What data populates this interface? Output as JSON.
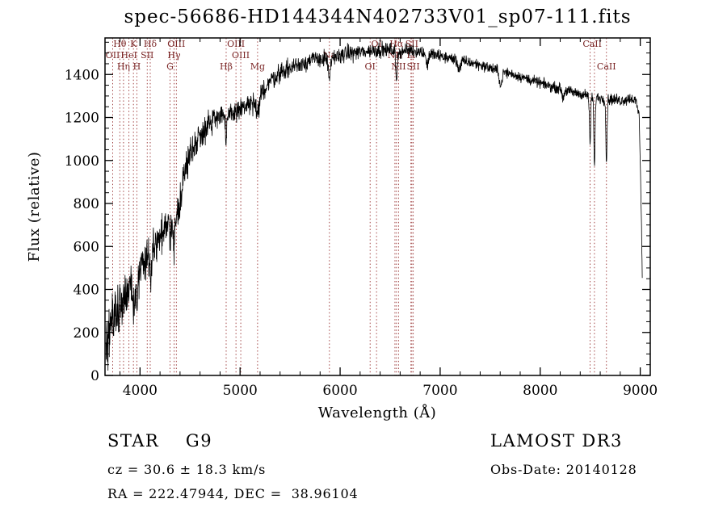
{
  "title": "spec-56686-HD144344N402733V01_sp07-111.fits",
  "footer": {
    "object_class": "STAR    G9",
    "survey": "LAMOST DR3",
    "cz": "cz = 30.6 ± 18.3 km/s",
    "obs_date": "Obs-Date: 20140128",
    "coordinates": "RA = 222.47944, DEC =  38.96104"
  },
  "chart_data": {
    "type": "line",
    "title": "spec-56686-HD144344N402733V01_sp07-111.fits",
    "xlabel": "Wavelength (Å)",
    "ylabel": "Flux (relative)",
    "xlim": [
      3650,
      9100
    ],
    "ylim": [
      0,
      1570
    ],
    "x_ticks": [
      4000,
      5000,
      6000,
      7000,
      8000,
      9000
    ],
    "y_ticks": [
      0,
      200,
      400,
      600,
      800,
      1000,
      1200,
      1400
    ],
    "grid": false,
    "legend": "none",
    "line_color": "#000000",
    "marker_color": "#993333",
    "marker_label_color": "#7a2525",
    "continuum": [
      [
        3660,
        90
      ],
      [
        3690,
        160
      ],
      [
        3710,
        260
      ],
      [
        3730,
        300
      ],
      [
        3760,
        280
      ],
      [
        3790,
        330
      ],
      [
        3820,
        330
      ],
      [
        3850,
        380
      ],
      [
        3880,
        400
      ],
      [
        3910,
        430
      ],
      [
        3940,
        420
      ],
      [
        3970,
        430
      ],
      [
        4000,
        500
      ],
      [
        4040,
        540
      ],
      [
        4080,
        560
      ],
      [
        4120,
        570
      ],
      [
        4160,
        620
      ],
      [
        4200,
        650
      ],
      [
        4240,
        670
      ],
      [
        4280,
        680
      ],
      [
        4320,
        690
      ],
      [
        4360,
        720
      ],
      [
        4400,
        820
      ],
      [
        4450,
        950
      ],
      [
        4500,
        1030
      ],
      [
        4550,
        1080
      ],
      [
        4600,
        1120
      ],
      [
        4650,
        1150
      ],
      [
        4700,
        1180
      ],
      [
        4750,
        1200
      ],
      [
        4800,
        1220
      ],
      [
        4850,
        1210
      ],
      [
        4900,
        1210
      ],
      [
        4950,
        1230
      ],
      [
        5000,
        1240
      ],
      [
        5050,
        1250
      ],
      [
        5100,
        1260
      ],
      [
        5150,
        1270
      ],
      [
        5200,
        1300
      ],
      [
        5250,
        1340
      ],
      [
        5300,
        1370
      ],
      [
        5350,
        1390
      ],
      [
        5400,
        1410
      ],
      [
        5450,
        1420
      ],
      [
        5500,
        1430
      ],
      [
        5550,
        1440
      ],
      [
        5600,
        1450
      ],
      [
        5650,
        1460
      ],
      [
        5700,
        1465
      ],
      [
        5750,
        1470
      ],
      [
        5800,
        1475
      ],
      [
        5850,
        1470
      ],
      [
        5900,
        1460
      ],
      [
        5950,
        1480
      ],
      [
        6000,
        1490
      ],
      [
        6100,
        1500
      ],
      [
        6200,
        1505
      ],
      [
        6300,
        1510
      ],
      [
        6400,
        1515
      ],
      [
        6500,
        1515
      ],
      [
        6600,
        1505
      ],
      [
        6700,
        1515
      ],
      [
        6800,
        1505
      ],
      [
        6900,
        1495
      ],
      [
        7000,
        1485
      ],
      [
        7100,
        1475
      ],
      [
        7200,
        1465
      ],
      [
        7300,
        1455
      ],
      [
        7400,
        1445
      ],
      [
        7500,
        1430
      ],
      [
        7600,
        1415
      ],
      [
        7700,
        1405
      ],
      [
        7800,
        1390
      ],
      [
        7900,
        1375
      ],
      [
        8000,
        1360
      ],
      [
        8100,
        1345
      ],
      [
        8200,
        1335
      ],
      [
        8300,
        1320
      ],
      [
        8400,
        1310
      ],
      [
        8500,
        1300
      ],
      [
        8600,
        1290
      ],
      [
        8700,
        1285
      ],
      [
        8800,
        1280
      ],
      [
        8870,
        1285
      ],
      [
        8920,
        1290
      ],
      [
        8960,
        1270
      ],
      [
        8990,
        1200
      ],
      [
        9005,
        900
      ],
      [
        9015,
        600
      ],
      [
        9020,
        470
      ]
    ],
    "absorption": [
      {
        "wl": 3934,
        "depth": 120,
        "sigma": 8
      },
      {
        "wl": 3968,
        "depth": 120,
        "sigma": 8
      },
      {
        "wl": 4102,
        "depth": 90,
        "sigma": 8
      },
      {
        "wl": 4340,
        "depth": 110,
        "sigma": 8
      },
      {
        "wl": 4861,
        "depth": 130,
        "sigma": 8
      },
      {
        "wl": 5175,
        "depth": 80,
        "sigma": 15
      },
      {
        "wl": 5893,
        "depth": 100,
        "sigma": 8
      },
      {
        "wl": 6563,
        "depth": 150,
        "sigma": 7
      },
      {
        "wl": 6870,
        "depth": 60,
        "sigma": 10
      },
      {
        "wl": 7190,
        "depth": 40,
        "sigma": 15
      },
      {
        "wl": 7605,
        "depth": 70,
        "sigma": 12
      },
      {
        "wl": 8228,
        "depth": 40,
        "sigma": 10
      },
      {
        "wl": 8498,
        "depth": 230,
        "sigma": 6
      },
      {
        "wl": 8542,
        "depth": 320,
        "sigma": 6
      },
      {
        "wl": 8662,
        "depth": 300,
        "sigma": 6
      }
    ],
    "noise_amplitude": [
      [
        3660,
        85
      ],
      [
        3800,
        75
      ],
      [
        3900,
        70
      ],
      [
        4000,
        60
      ],
      [
        4200,
        55
      ],
      [
        4400,
        50
      ],
      [
        4600,
        42
      ],
      [
        4800,
        38
      ],
      [
        5000,
        34
      ],
      [
        5200,
        30
      ],
      [
        5400,
        28
      ],
      [
        5600,
        26
      ],
      [
        5800,
        25
      ],
      [
        6000,
        24
      ],
      [
        6300,
        22
      ],
      [
        6600,
        20
      ],
      [
        7000,
        18
      ],
      [
        7500,
        16
      ],
      [
        8000,
        15
      ],
      [
        8500,
        16
      ],
      [
        9020,
        18
      ]
    ],
    "line_markers": {
      "lines": [
        3727,
        3798,
        3835,
        3889,
        3934,
        3968,
        4072,
        4102,
        4300,
        4340,
        4363,
        4861,
        4959,
        5007,
        5175,
        5893,
        6300,
        6364,
        6548,
        6563,
        6584,
        6708,
        6717,
        6731,
        8498,
        8542,
        8662
      ],
      "labels": [
        {
          "wl": 3798,
          "row": 1,
          "text": "Hθ"
        },
        {
          "wl": 3934,
          "row": 1,
          "text": "K"
        },
        {
          "wl": 4102,
          "row": 1,
          "text": "Hδ"
        },
        {
          "wl": 4363,
          "row": 1,
          "text": "OIII"
        },
        {
          "wl": 4959,
          "row": 1,
          "text": "OIII"
        },
        {
          "wl": 6364,
          "row": 1,
          "text": "OI"
        },
        {
          "wl": 6563,
          "row": 1,
          "text": "Hα"
        },
        {
          "wl": 6717,
          "row": 1,
          "text": "SII"
        },
        {
          "wl": 8520,
          "row": 1,
          "text": "CaII"
        },
        {
          "wl": 3727,
          "row": 2,
          "text": "OII"
        },
        {
          "wl": 3889,
          "row": 2,
          "text": "HeI"
        },
        {
          "wl": 4072,
          "row": 2,
          "text": "SII"
        },
        {
          "wl": 4340,
          "row": 2,
          "text": "Hγ"
        },
        {
          "wl": 5007,
          "row": 2,
          "text": "OIII"
        },
        {
          "wl": 5893,
          "row": 2,
          "text": "Na"
        },
        {
          "wl": 6548,
          "row": 2,
          "text": "NII"
        },
        {
          "wl": 6708,
          "row": 2,
          "text": "Li"
        },
        {
          "wl": 8662,
          "row": 3,
          "text": "CaII"
        },
        {
          "wl": 3835,
          "row": 3,
          "text": "Hη"
        },
        {
          "wl": 3968,
          "row": 3,
          "text": "H"
        },
        {
          "wl": 4300,
          "row": 3,
          "text": "G"
        },
        {
          "wl": 4861,
          "row": 3,
          "text": "Hβ"
        },
        {
          "wl": 5175,
          "row": 3,
          "text": "Mg"
        },
        {
          "wl": 6300,
          "row": 3,
          "text": "OI"
        },
        {
          "wl": 6584,
          "row": 3,
          "text": "NII"
        },
        {
          "wl": 6731,
          "row": 3,
          "text": "SII"
        }
      ]
    }
  }
}
